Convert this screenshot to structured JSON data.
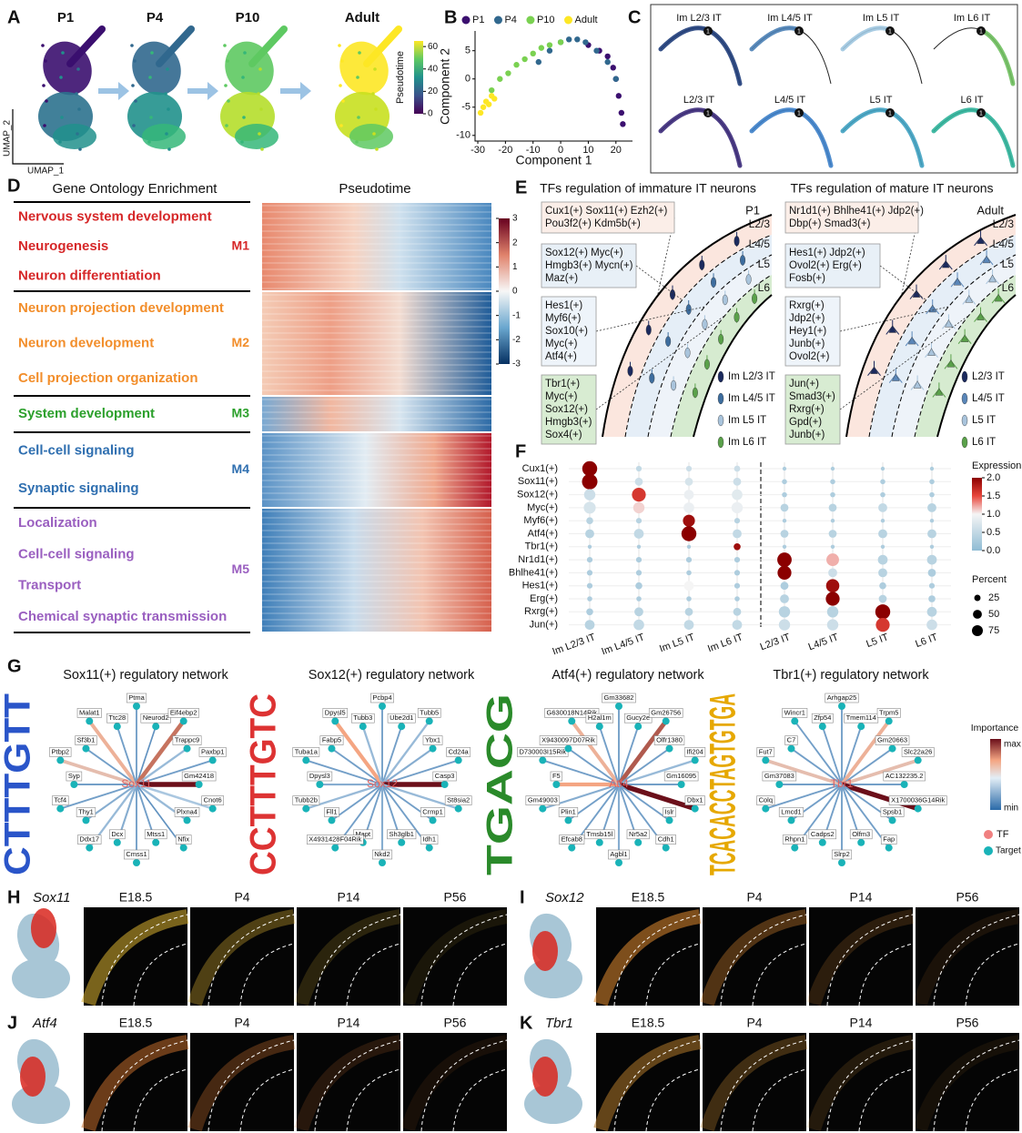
{
  "panel_a": {
    "label": "A",
    "timepoints": [
      "P1",
      "P4",
      "P10",
      "Adult"
    ],
    "y_axis": "UMAP_2",
    "x_axis": "UMAP_1",
    "colorbar": {
      "title": "Pseudotime",
      "lim": [
        0,
        65
      ],
      "ticks": [
        0,
        20,
        40,
        60
      ]
    }
  },
  "panel_b": {
    "label": "B",
    "type": "scatter",
    "xlabel": "Component 1",
    "ylabel": "Component 2",
    "xlim": [
      -31,
      26
    ],
    "ylim": [
      -11,
      8.5
    ],
    "xticks": [
      -30,
      -20,
      -10,
      0,
      10,
      20
    ],
    "yticks": [
      -10,
      -5,
      0,
      5
    ],
    "series": [
      {
        "name": "P1",
        "color": "#3b0f6f",
        "x": [
          10,
          14,
          17,
          19,
          20,
          21,
          22,
          22.5
        ],
        "y": [
          6,
          5,
          4,
          2,
          0,
          -3,
          -6,
          -8
        ]
      },
      {
        "name": "P4",
        "color": "#31688e",
        "x": [
          -8,
          -4,
          0,
          3,
          6,
          9,
          13,
          17,
          20
        ],
        "y": [
          3,
          5,
          6.5,
          7,
          7,
          6.5,
          5,
          3,
          0
        ]
      },
      {
        "name": "P10",
        "color": "#7ad151",
        "x": [
          -25,
          -22,
          -19,
          -16,
          -13,
          -10,
          -7,
          -4,
          0
        ],
        "y": [
          -2,
          0,
          1,
          2.5,
          3.5,
          4.5,
          5.5,
          6,
          6.5
        ]
      },
      {
        "name": "Adult",
        "color": "#fde725",
        "x": [
          -29,
          -28,
          -27,
          -26,
          -25,
          -24
        ],
        "y": [
          -6,
          -5,
          -4,
          -4.5,
          -3,
          -3.5
        ]
      }
    ]
  },
  "panel_c": {
    "label": "C",
    "branch_label": "1",
    "trajectories": [
      {
        "name": "Im L2/3 IT",
        "color": "#1f3d7a"
      },
      {
        "name": "Im L4/5 IT",
        "color": "#4a7fb5"
      },
      {
        "name": "Im L5 IT",
        "color": "#9ec6e0"
      },
      {
        "name": "Im L6 IT",
        "color": "#6fbf5e"
      },
      {
        "name": "L2/3 IT",
        "color": "#3b2a7a"
      },
      {
        "name": "L4/5 IT",
        "color": "#3c7fc9"
      },
      {
        "name": "L5 IT",
        "color": "#3fa1c1"
      },
      {
        "name": "L6 IT",
        "color": "#2fb39a"
      }
    ]
  },
  "panel_d": {
    "label": "D",
    "heading": "Gene Ontology Enrichment",
    "heatmap_title": "Pseudotime",
    "colorbar": {
      "lim": [
        -3,
        3
      ],
      "ticks": [
        3,
        2,
        1,
        0,
        -1,
        -2,
        -3
      ]
    },
    "modules": [
      {
        "name": "M1",
        "color": "#d62728",
        "terms": [
          "Nervous system development",
          "Neurogenesis",
          "Neuron differentiation"
        ]
      },
      {
        "name": "M2",
        "color": "#f28e2b",
        "terms": [
          "Neuron projection development",
          "Neuron development",
          "Cell projection organization"
        ]
      },
      {
        "name": "M3",
        "color": "#2ca02c",
        "terms": [
          "System development"
        ]
      },
      {
        "name": "M4",
        "color": "#2f6fb0",
        "terms": [
          "Cell-cell signaling",
          "Synaptic signaling"
        ]
      },
      {
        "name": "M5",
        "color": "#9a5fc0",
        "terms": [
          "Localization",
          "Cell-cell signaling",
          "Transport",
          "Chemical synaptic transmission"
        ]
      }
    ]
  },
  "panel_e": {
    "label": "E",
    "immature": {
      "title": "TFs regulation of immature IT neurons",
      "stage": "P1",
      "layers": [
        "L2/3",
        "L4/5",
        "L5",
        "L6"
      ],
      "boxes": [
        [
          "Cux1(+) Sox11(+) Ezh2(+)",
          "Pou3f2(+) Kdm5b(+)"
        ],
        [
          "Sox12(+) Myc(+)",
          "Hmgb3(+) Mycn(+)",
          "Maz(+)"
        ],
        [
          "Hes1(+)",
          "Myf6(+)",
          "Sox10(+)",
          "Myc(+)",
          "Atf4(+)"
        ],
        [
          "Tbr1(+)",
          "Myc(+)",
          "Sox12(+)",
          "Hmgb3(+)",
          "Sox4(+)"
        ]
      ],
      "legend": [
        "Im L2/3 IT",
        "Im L4/5 IT",
        "Im L5 IT",
        "Im L6 IT"
      ],
      "legend_colors": [
        "#1b2a5e",
        "#3d6d9e",
        "#a9c4dc",
        "#5aa14a"
      ]
    },
    "mature": {
      "title": "TFs regulation of mature IT neurons",
      "stage": "Adult",
      "layers": [
        "L2/3",
        "L4/5",
        "L5",
        "L6"
      ],
      "boxes": [
        [
          "Nr1d1(+) Bhlhe41(+) Jdp2(+)",
          "Dbp(+) Smad3(+)"
        ],
        [
          "Hes1(+) Jdp2(+)",
          "Ovol2(+) Erg(+)",
          "Fosb(+)"
        ],
        [
          "Rxrg(+)",
          "Jdp2(+)",
          "Hey1(+)",
          "Junb(+)",
          "Ovol2(+)"
        ],
        [
          "Jun(+)",
          "Smad3(+)",
          "Rxrg(+)",
          "Gpd(+)",
          "Junb(+)"
        ]
      ],
      "legend": [
        "L2/3 IT",
        "L4/5 IT",
        "L5 IT",
        "L6 IT"
      ],
      "legend_colors": [
        "#1b2a5e",
        "#5a86b8",
        "#a9c4dc",
        "#5aa14a"
      ]
    }
  },
  "panel_f": {
    "label": "F",
    "rows": [
      "Cux1(+)",
      "Sox11(+)",
      "Sox12(+)",
      "Myc(+)",
      "Myf6(+)",
      "Atf4(+)",
      "Tbr1(+)",
      "Nr1d1(+)",
      "Bhlhe41(+)",
      "Hes1(+)",
      "Erg(+)",
      "Rxrg(+)",
      "Jun(+)"
    ],
    "columns": [
      "Im L2/3 IT",
      "Im L4/5 IT",
      "Im L5 IT",
      "Im L6 IT",
      "L2/3 IT",
      "L4/5 IT",
      "L5 IT",
      "L6 IT"
    ],
    "expression": [
      [
        2.0,
        0.5,
        0.6,
        0.6,
        0.3,
        0.3,
        0.3,
        0.3
      ],
      [
        2.0,
        0.6,
        0.7,
        0.6,
        0.3,
        0.3,
        0.3,
        0.3
      ],
      [
        0.6,
        1.6,
        0.9,
        0.8,
        0.3,
        0.3,
        0.3,
        0.3
      ],
      [
        0.7,
        1.1,
        0.9,
        0.9,
        0.4,
        0.4,
        0.5,
        0.4
      ],
      [
        0.4,
        0.4,
        1.9,
        0.4,
        0.3,
        0.3,
        0.3,
        0.3
      ],
      [
        0.4,
        0.5,
        2.0,
        0.5,
        0.4,
        0.4,
        0.4,
        0.4
      ],
      [
        0.3,
        0.3,
        0.3,
        1.9,
        0.3,
        0.3,
        0.3,
        0.3
      ],
      [
        0.3,
        0.3,
        0.3,
        0.3,
        2.0,
        1.2,
        0.4,
        0.4
      ],
      [
        0.3,
        0.3,
        0.3,
        0.3,
        2.0,
        0.6,
        0.4,
        0.3
      ],
      [
        0.3,
        0.3,
        1.0,
        0.3,
        0.3,
        1.9,
        0.3,
        0.3
      ],
      [
        0.3,
        0.3,
        0.3,
        0.3,
        0.4,
        2.0,
        0.4,
        0.3
      ],
      [
        0.3,
        0.4,
        0.4,
        0.4,
        0.4,
        0.4,
        2.0,
        0.4
      ],
      [
        0.4,
        0.5,
        0.5,
        0.5,
        0.6,
        0.6,
        1.6,
        0.6
      ]
    ],
    "percent": [
      [
        70,
        10,
        10,
        12,
        5,
        5,
        5,
        5
      ],
      [
        75,
        20,
        20,
        20,
        8,
        8,
        8,
        8
      ],
      [
        40,
        60,
        30,
        35,
        8,
        8,
        8,
        8
      ],
      [
        45,
        40,
        35,
        40,
        20,
        20,
        25,
        25
      ],
      [
        15,
        10,
        45,
        10,
        5,
        5,
        5,
        5
      ],
      [
        25,
        30,
        70,
        25,
        20,
        20,
        25,
        25
      ],
      [
        5,
        5,
        5,
        15,
        5,
        5,
        5,
        5
      ],
      [
        10,
        10,
        10,
        10,
        65,
        50,
        30,
        30
      ],
      [
        10,
        10,
        8,
        10,
        60,
        25,
        25,
        20
      ],
      [
        10,
        15,
        30,
        10,
        20,
        55,
        15,
        10
      ],
      [
        8,
        8,
        8,
        8,
        25,
        60,
        20,
        15
      ],
      [
        15,
        25,
        20,
        20,
        40,
        40,
        70,
        30
      ],
      [
        30,
        35,
        30,
        30,
        40,
        40,
        60,
        35
      ]
    ],
    "expression_legend": {
      "title": "Expression",
      "lim": [
        0,
        2
      ],
      "ticks": [
        {
          "value": 0,
          "label": "0.0"
        },
        {
          "value": 0.5,
          "label": "0.5"
        },
        {
          "value": 1,
          "label": "1.0"
        },
        {
          "value": 1.5,
          "label": "1.5"
        },
        {
          "value": 2,
          "label": "2.0"
        }
      ]
    },
    "percent_legend": {
      "title": "Percent",
      "sizes": [
        25,
        50,
        75
      ]
    }
  },
  "panel_g": {
    "label": "G",
    "networks": [
      {
        "title": "Sox11(+) regulatory network",
        "tf": "Sox11",
        "motif": "CTTTGTT",
        "targets": [
          "Ptma",
          "Neurod2",
          "Eif4ebp2",
          "Trappc9",
          "Paxbp1",
          "Gm42418",
          "Cnot6",
          "Plxna4",
          "Nfix",
          "Mtss1",
          "Cmss1",
          "Dcx",
          "Ddx17",
          "Thy1",
          "Tcf4",
          "Syp",
          "Ptbp2",
          "Sf3b1",
          "Malat1",
          "Ttc28"
        ],
        "importance": [
          0.2,
          0.15,
          0.8,
          0.3,
          0.2,
          1.0,
          0.35,
          0.3,
          0.15,
          0.2,
          0.2,
          0.25,
          0.3,
          0.25,
          0.2,
          0.2,
          0.6,
          0.2,
          0.65,
          0.2
        ]
      },
      {
        "title": "Sox12(+) regulatory network",
        "tf": "Sox12",
        "motif": "CCTTTGTC",
        "targets": [
          "Pcbp4",
          "Ube2d1",
          "Tubb5",
          "Ybx1",
          "Cd24a",
          "Casp3",
          "St8sia2",
          "Crmp1",
          "Idh1",
          "Sh3glb1",
          "Nkd2",
          "Mapt",
          "X4931428F04Rik",
          "Fll1",
          "Tubb2b",
          "Dpysl3",
          "Tuba1a",
          "Fabp5",
          "Dpysl5",
          "Tubb3"
        ],
        "importance": [
          0.2,
          0.2,
          0.3,
          0.25,
          0.2,
          1.0,
          0.3,
          0.2,
          0.2,
          0.2,
          0.25,
          0.2,
          0.2,
          0.2,
          0.3,
          0.25,
          0.2,
          0.2,
          0.7,
          0.3
        ]
      },
      {
        "title": "Atf4(+) regulatory network",
        "tf": "Atf4",
        "motif": "TGACG",
        "targets": [
          "Gm33682",
          "Gucy2e",
          "Gm26756",
          "Olfr1380",
          "Ifi204",
          "Gm16095",
          "Dbx1",
          "Islr",
          "Cdh1",
          "Nr5a2",
          "Agbl1",
          "Tmsb15l",
          "Efcab8",
          "Plin1",
          "Gm49003",
          "F5",
          "D730003I15Rik",
          "X9430097D07Rik",
          "G630018N14Rik",
          "H2al1m"
        ],
        "importance": [
          0.2,
          0.2,
          0.85,
          0.2,
          0.3,
          0.2,
          1.0,
          0.2,
          0.2,
          0.2,
          0.25,
          0.2,
          0.2,
          0.2,
          0.25,
          0.7,
          0.2,
          0.2,
          0.65,
          0.2
        ]
      },
      {
        "title": "Tbr1(+) regulatory network",
        "tf": "Tbr1",
        "motif": "TCACACCTAGTGTGA",
        "targets": [
          "Arhgap25",
          "Tmem114",
          "Trpm5",
          "Gm20663",
          "Slc22a26",
          "AC132235.2",
          "X1700036G14Rik",
          "Spsb1",
          "Fap",
          "Olfm3",
          "Slrp2",
          "Cadps2",
          "Rhpn1",
          "Lmcd1",
          "Colq",
          "Gm37083",
          "Fut7",
          "C7",
          "Wincr1",
          "Zfp54"
        ],
        "importance": [
          0.2,
          0.2,
          0.65,
          0.2,
          0.6,
          0.2,
          1.0,
          0.2,
          0.2,
          0.2,
          0.2,
          0.2,
          0.2,
          0.2,
          0.2,
          0.2,
          0.6,
          0.2,
          0.2,
          0.2
        ]
      }
    ],
    "legend": {
      "title": "Importance",
      "max": "max",
      "min": "min",
      "tf": "TF",
      "target": "Target"
    }
  },
  "panel_hk": [
    {
      "label": "H",
      "gene": "Sox11",
      "timepoints": [
        "E18.5",
        "P4",
        "P14",
        "P56"
      ]
    },
    {
      "label": "I",
      "gene": "Sox12",
      "timepoints": [
        "E18.5",
        "P4",
        "P14",
        "P56"
      ]
    },
    {
      "label": "J",
      "gene": "Atf4",
      "timepoints": [
        "E18.5",
        "P4",
        "P14",
        "P56"
      ]
    },
    {
      "label": "K",
      "gene": "Tbr1",
      "timepoints": [
        "E18.5",
        "P4",
        "P14",
        "P56"
      ]
    }
  ]
}
